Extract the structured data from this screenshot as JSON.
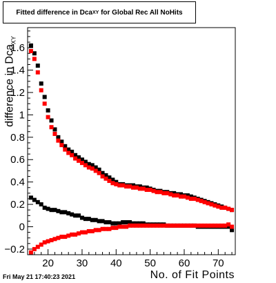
{
  "title": {
    "main": "Fitted difference in Dca",
    "sub": "XY",
    "rest": " for Global Rec All NoHits"
  },
  "footer": "Fri May 21 17:40:23 2021",
  "chart_data": {
    "type": "scatter",
    "xlabel": "No. of Fit Points",
    "ylabel": {
      "main": "difference in Dca",
      "sub": "XY"
    },
    "xlim": [
      14,
      75
    ],
    "ylim": [
      -0.25,
      1.78
    ],
    "xticks": [
      20,
      30,
      40,
      50,
      60,
      70
    ],
    "yticks": [
      -0.2,
      0,
      0.2,
      0.4,
      0.6,
      0.8,
      1,
      1.2,
      1.4,
      1.6
    ],
    "series": [
      {
        "color": "#000000",
        "marker": "square",
        "points": [
          [
            15,
            1.62
          ],
          [
            16,
            1.55
          ],
          [
            17,
            1.44
          ],
          [
            18,
            1.28
          ],
          [
            19,
            1.16
          ],
          [
            20,
            1.04
          ],
          [
            21,
            0.95
          ],
          [
            22,
            0.87
          ],
          [
            23,
            0.8
          ],
          [
            24,
            0.76
          ],
          [
            25,
            0.72
          ],
          [
            26,
            0.69
          ],
          [
            27,
            0.67
          ],
          [
            28,
            0.64
          ],
          [
            29,
            0.62
          ],
          [
            30,
            0.6
          ],
          [
            31,
            0.58
          ],
          [
            32,
            0.56
          ],
          [
            33,
            0.55
          ],
          [
            34,
            0.53
          ],
          [
            35,
            0.51
          ],
          [
            36,
            0.48
          ],
          [
            37,
            0.46
          ],
          [
            38,
            0.44
          ],
          [
            39,
            0.42
          ],
          [
            40,
            0.4
          ],
          [
            41,
            0.38
          ],
          [
            42,
            0.38
          ],
          [
            43,
            0.37
          ],
          [
            44,
            0.37
          ],
          [
            45,
            0.37
          ],
          [
            46,
            0.36
          ],
          [
            47,
            0.36
          ],
          [
            48,
            0.35
          ],
          [
            49,
            0.35
          ],
          [
            50,
            0.34
          ],
          [
            51,
            0.33
          ],
          [
            52,
            0.32
          ],
          [
            53,
            0.32
          ],
          [
            54,
            0.31
          ],
          [
            55,
            0.31
          ],
          [
            56,
            0.3
          ],
          [
            57,
            0.3
          ],
          [
            58,
            0.29
          ],
          [
            59,
            0.29
          ],
          [
            60,
            0.28
          ],
          [
            61,
            0.28
          ],
          [
            62,
            0.27
          ],
          [
            63,
            0.26
          ],
          [
            64,
            0.25
          ],
          [
            65,
            0.24
          ],
          [
            66,
            0.23
          ],
          [
            67,
            0.22
          ],
          [
            68,
            0.21
          ],
          [
            69,
            0.2
          ],
          [
            70,
            0.19
          ],
          [
            71,
            0.18
          ],
          [
            72,
            0.17
          ],
          [
            73,
            0.16
          ],
          [
            74,
            0.15
          ]
        ]
      },
      {
        "color": "#ff0000",
        "marker": "square",
        "points": [
          [
            15,
            1.57
          ],
          [
            16,
            1.5
          ],
          [
            17,
            1.38
          ],
          [
            18,
            1.22
          ],
          [
            19,
            1.1
          ],
          [
            20,
            0.98
          ],
          [
            21,
            0.89
          ],
          [
            22,
            0.83
          ],
          [
            23,
            0.77
          ],
          [
            24,
            0.73
          ],
          [
            25,
            0.69
          ],
          [
            26,
            0.66
          ],
          [
            27,
            0.64
          ],
          [
            28,
            0.61
          ],
          [
            29,
            0.59
          ],
          [
            30,
            0.57
          ],
          [
            31,
            0.55
          ],
          [
            32,
            0.53
          ],
          [
            33,
            0.52
          ],
          [
            34,
            0.5
          ],
          [
            35,
            0.48
          ],
          [
            36,
            0.45
          ],
          [
            37,
            0.43
          ],
          [
            38,
            0.41
          ],
          [
            39,
            0.39
          ],
          [
            40,
            0.38
          ],
          [
            41,
            0.37
          ],
          [
            42,
            0.37
          ],
          [
            43,
            0.36
          ],
          [
            44,
            0.36
          ],
          [
            45,
            0.35
          ],
          [
            46,
            0.35
          ],
          [
            47,
            0.34
          ],
          [
            48,
            0.34
          ],
          [
            49,
            0.33
          ],
          [
            50,
            0.33
          ],
          [
            51,
            0.32
          ],
          [
            52,
            0.31
          ],
          [
            53,
            0.31
          ],
          [
            54,
            0.3
          ],
          [
            55,
            0.3
          ],
          [
            56,
            0.29
          ],
          [
            57,
            0.28
          ],
          [
            58,
            0.28
          ],
          [
            59,
            0.27
          ],
          [
            60,
            0.27
          ],
          [
            61,
            0.26
          ],
          [
            62,
            0.25
          ],
          [
            63,
            0.25
          ],
          [
            64,
            0.24
          ],
          [
            65,
            0.23
          ],
          [
            66,
            0.22
          ],
          [
            67,
            0.21
          ],
          [
            68,
            0.2
          ],
          [
            69,
            0.19
          ],
          [
            70,
            0.18
          ],
          [
            71,
            0.17
          ],
          [
            72,
            0.17
          ],
          [
            73,
            0.16
          ],
          [
            74,
            0.15
          ]
        ]
      },
      {
        "color": "#000000",
        "marker": "square",
        "points": [
          [
            15,
            0.26
          ],
          [
            16,
            0.24
          ],
          [
            17,
            0.22
          ],
          [
            18,
            0.2
          ],
          [
            19,
            0.17
          ],
          [
            20,
            0.16
          ],
          [
            21,
            0.15
          ],
          [
            22,
            0.15
          ],
          [
            23,
            0.14
          ],
          [
            24,
            0.13
          ],
          [
            25,
            0.13
          ],
          [
            26,
            0.12
          ],
          [
            27,
            0.11
          ],
          [
            28,
            0.1
          ],
          [
            29,
            0.1
          ],
          [
            30,
            0.08
          ],
          [
            31,
            0.07
          ],
          [
            32,
            0.07
          ],
          [
            33,
            0.06
          ],
          [
            34,
            0.06
          ],
          [
            35,
            0.05
          ],
          [
            36,
            0.05
          ],
          [
            37,
            0.04
          ],
          [
            38,
            0.04
          ],
          [
            39,
            0.03
          ],
          [
            40,
            0.03
          ],
          [
            41,
            0.03
          ],
          [
            42,
            0.04
          ],
          [
            43,
            0.04
          ],
          [
            44,
            0.04
          ],
          [
            45,
            0.03
          ],
          [
            46,
            0.03
          ],
          [
            47,
            0.03
          ],
          [
            48,
            0.03
          ],
          [
            49,
            0.02
          ],
          [
            50,
            0.02
          ],
          [
            51,
            0.02
          ],
          [
            52,
            0.02
          ],
          [
            53,
            0.02
          ],
          [
            54,
            0.02
          ],
          [
            55,
            0.01
          ],
          [
            56,
            0.01
          ],
          [
            57,
            0.01
          ],
          [
            58,
            0.01
          ],
          [
            59,
            0.01
          ],
          [
            60,
            0.01
          ],
          [
            61,
            0.01
          ],
          [
            62,
            0.01
          ],
          [
            63,
            0.01
          ],
          [
            64,
            0.0
          ],
          [
            65,
            0.0
          ],
          [
            66,
            0.0
          ],
          [
            67,
            0.0
          ],
          [
            68,
            0.0
          ],
          [
            69,
            0.0
          ],
          [
            70,
            0.0
          ],
          [
            71,
            0.0
          ],
          [
            72,
            0.0
          ],
          [
            73,
            0.0
          ],
          [
            74,
            -0.03
          ]
        ]
      },
      {
        "color": "#ff0000",
        "marker": "square",
        "points": [
          [
            15,
            -0.23
          ],
          [
            16,
            -0.2
          ],
          [
            17,
            -0.18
          ],
          [
            18,
            -0.16
          ],
          [
            19,
            -0.14
          ],
          [
            20,
            -0.13
          ],
          [
            21,
            -0.12
          ],
          [
            22,
            -0.11
          ],
          [
            23,
            -0.1
          ],
          [
            24,
            -0.09
          ],
          [
            25,
            -0.09
          ],
          [
            26,
            -0.08
          ],
          [
            27,
            -0.07
          ],
          [
            28,
            -0.07
          ],
          [
            29,
            -0.06
          ],
          [
            30,
            -0.05
          ],
          [
            31,
            -0.05
          ],
          [
            32,
            -0.04
          ],
          [
            33,
            -0.04
          ],
          [
            34,
            -0.03
          ],
          [
            35,
            -0.03
          ],
          [
            36,
            -0.02
          ],
          [
            37,
            -0.02
          ],
          [
            38,
            -0.02
          ],
          [
            39,
            -0.01
          ],
          [
            40,
            -0.01
          ],
          [
            41,
            0.0
          ],
          [
            42,
            0.0
          ],
          [
            43,
            0.0
          ],
          [
            44,
            0.01
          ],
          [
            45,
            0.01
          ],
          [
            46,
            0.01
          ],
          [
            47,
            0.01
          ],
          [
            48,
            0.01
          ],
          [
            49,
            0.01
          ],
          [
            50,
            0.01
          ],
          [
            51,
            0.01
          ],
          [
            52,
            0.01
          ],
          [
            53,
            0.01
          ],
          [
            54,
            0.01
          ],
          [
            55,
            0.01
          ],
          [
            56,
            0.01
          ],
          [
            57,
            0.01
          ],
          [
            58,
            0.01
          ],
          [
            59,
            0.01
          ],
          [
            60,
            0.01
          ],
          [
            61,
            0.01
          ],
          [
            62,
            0.01
          ],
          [
            63,
            0.01
          ],
          [
            64,
            0.01
          ],
          [
            65,
            0.01
          ],
          [
            66,
            0.01
          ],
          [
            67,
            0.01
          ],
          [
            68,
            0.01
          ],
          [
            69,
            0.01
          ],
          [
            70,
            0.01
          ],
          [
            71,
            0.01
          ],
          [
            72,
            0.01
          ],
          [
            73,
            0.02
          ],
          [
            74,
            0.0
          ]
        ]
      }
    ]
  }
}
